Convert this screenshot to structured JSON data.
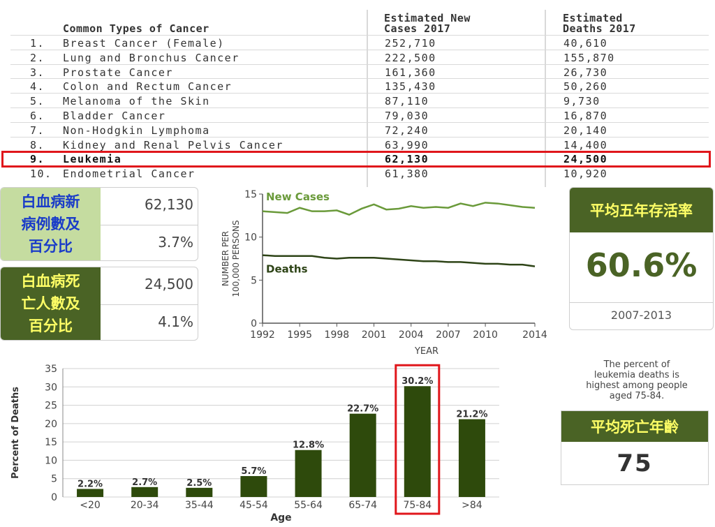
{
  "table": {
    "headers": {
      "type": "Common Types of Cancer",
      "new_cases_1": "Estimated New",
      "new_cases_2": "Cases 2017",
      "deaths_1": "Estimated",
      "deaths_2": "Deaths 2017"
    },
    "rows": [
      {
        "rank": "1.",
        "name": "Breast Cancer (Female)",
        "cases": "252,710",
        "deaths": "40,610"
      },
      {
        "rank": "2.",
        "name": "Lung and Bronchus Cancer",
        "cases": "222,500",
        "deaths": "155,870"
      },
      {
        "rank": "3.",
        "name": "Prostate Cancer",
        "cases": "161,360",
        "deaths": "26,730"
      },
      {
        "rank": "4.",
        "name": "Colon and Rectum Cancer",
        "cases": "135,430",
        "deaths": "50,260"
      },
      {
        "rank": "5.",
        "name": "Melanoma of the Skin",
        "cases": "87,110",
        "deaths": "9,730"
      },
      {
        "rank": "6.",
        "name": "Bladder Cancer",
        "cases": "79,030",
        "deaths": "16,870"
      },
      {
        "rank": "7.",
        "name": "Non-Hodgkin Lymphoma",
        "cases": "72,240",
        "deaths": "20,140"
      },
      {
        "rank": "8.",
        "name": "Kidney and Renal Pelvis Cancer",
        "cases": "63,990",
        "deaths": "14,400"
      },
      {
        "rank": "9.",
        "name": "Leukemia",
        "cases": "62,130",
        "deaths": "24,500"
      },
      {
        "rank": "10.",
        "name": "Endometrial Cancer",
        "cases": "61,380",
        "deaths": "10,920"
      }
    ]
  },
  "new_cases_box": {
    "label_1": "白血病新",
    "label_2": "病例數及",
    "label_3": "百分比",
    "count": "62,130",
    "percent": "3.7%",
    "label_bg": "#c5dca0",
    "label_color": "#1a3cc8"
  },
  "deaths_box": {
    "label_1": "白血病死",
    "label_2": "亡人數及",
    "label_3": "百分比",
    "count": "24,500",
    "percent": "4.1%",
    "label_bg": "#4a6325",
    "label_color": "#ffff66"
  },
  "survival": {
    "title": "平均五年存活率",
    "value": "60.6%",
    "years": "2007-2013"
  },
  "age": {
    "note_1": "The percent of",
    "note_2": "leukemia deaths is",
    "note_3": "highest among people",
    "note_4": "aged 75-84.",
    "title": "平均死亡年齡",
    "value": "75"
  },
  "chart_data": [
    {
      "type": "line",
      "title": "",
      "xlabel": "YEAR",
      "ylabel": "NUMBER PER 100,000 PERSONS",
      "ylabel_1": "NUMBER PER",
      "ylabel_2": "100,000 PERSONS",
      "xlim": [
        1992,
        2014
      ],
      "ylim": [
        0,
        15
      ],
      "x_ticks": [
        1992,
        1995,
        1998,
        2001,
        2004,
        2007,
        2010,
        2014
      ],
      "y_ticks": [
        0,
        5,
        10,
        15
      ],
      "x": [
        1992,
        1993,
        1994,
        1995,
        1996,
        1997,
        1998,
        1999,
        2000,
        2001,
        2002,
        2003,
        2004,
        2005,
        2006,
        2007,
        2008,
        2009,
        2010,
        2011,
        2012,
        2013,
        2014
      ],
      "series": [
        {
          "name": "New Cases",
          "color": "#6a9a3a",
          "values": [
            13.0,
            12.9,
            12.8,
            13.4,
            13.0,
            13.0,
            13.1,
            12.6,
            13.3,
            13.8,
            13.2,
            13.3,
            13.6,
            13.4,
            13.5,
            13.4,
            13.9,
            13.6,
            14.0,
            13.9,
            13.7,
            13.5,
            13.4
          ]
        },
        {
          "name": "Deaths",
          "color": "#2e4417",
          "values": [
            7.9,
            7.8,
            7.8,
            7.8,
            7.8,
            7.6,
            7.5,
            7.6,
            7.6,
            7.6,
            7.5,
            7.4,
            7.3,
            7.2,
            7.2,
            7.1,
            7.1,
            7.0,
            6.9,
            6.9,
            6.8,
            6.8,
            6.6
          ]
        }
      ]
    },
    {
      "type": "bar",
      "title": "",
      "xlabel": "Age",
      "ylabel": "Percent of Deaths",
      "ylim": [
        0,
        35
      ],
      "y_ticks": [
        0,
        5,
        10,
        15,
        20,
        25,
        30,
        35
      ],
      "categories": [
        "<20",
        "20-34",
        "35-44",
        "45-54",
        "55-64",
        "65-74",
        "75-84",
        ">84"
      ],
      "values": [
        2.2,
        2.7,
        2.5,
        5.7,
        12.8,
        22.7,
        30.2,
        21.2
      ],
      "labels": [
        "2.2%",
        "2.7%",
        "2.5%",
        "5.7%",
        "12.8%",
        "22.7%",
        "30.2%",
        "21.2%"
      ],
      "highlight": "75-84",
      "bar_color": "#2e4a0c"
    }
  ]
}
